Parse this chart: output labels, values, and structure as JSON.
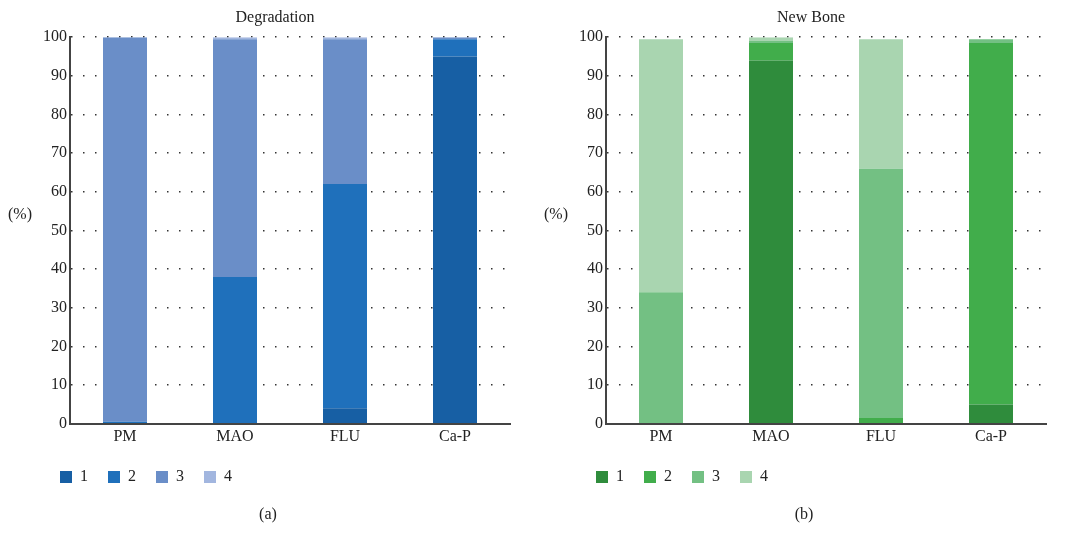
{
  "chart_data": [
    {
      "type": "bar",
      "title": "Degradation",
      "ylabel": "(%)",
      "categories": [
        "PM",
        "MAO",
        "FLU",
        "Ca-P"
      ],
      "stacked": true,
      "ylim": [
        0,
        100
      ],
      "yticks": [
        0,
        10,
        20,
        30,
        40,
        50,
        60,
        70,
        80,
        90,
        100
      ],
      "grid": "y",
      "legend": "bottom",
      "annotations": [
        "(a)"
      ],
      "series": [
        {
          "name": "1",
          "color": "#175fa4",
          "values": [
            0,
            0,
            4,
            95
          ]
        },
        {
          "name": "2",
          "color": "#1f70bb",
          "values": [
            0.5,
            38,
            58,
            4.5
          ]
        },
        {
          "name": "3",
          "color": "#6a8ec8",
          "values": [
            99.5,
            61.5,
            37.5,
            0.5
          ]
        },
        {
          "name": "4",
          "color": "#a2b6df",
          "values": [
            0,
            0.5,
            0.5,
            0
          ]
        }
      ]
    },
    {
      "type": "bar",
      "title": "New Bone",
      "ylabel": "(%)",
      "categories": [
        "PM",
        "MAO",
        "FLU",
        "Ca-P"
      ],
      "stacked": true,
      "ylim": [
        0,
        100
      ],
      "yticks": [
        0,
        10,
        20,
        30,
        40,
        50,
        60,
        70,
        80,
        90,
        100
      ],
      "grid": "y",
      "legend": "bottom",
      "annotations": [
        "(b)"
      ],
      "series": [
        {
          "name": "1",
          "color": "#2f8c3c",
          "values": [
            0,
            94,
            0,
            5
          ]
        },
        {
          "name": "2",
          "color": "#41ad4b",
          "values": [
            0,
            4.5,
            1.5,
            93.5
          ]
        },
        {
          "name": "3",
          "color": "#73c083",
          "values": [
            34,
            0.5,
            64.5,
            1
          ]
        },
        {
          "name": "4",
          "color": "#a9d5b0",
          "values": [
            65.5,
            1,
            33.5,
            0
          ]
        }
      ]
    }
  ]
}
